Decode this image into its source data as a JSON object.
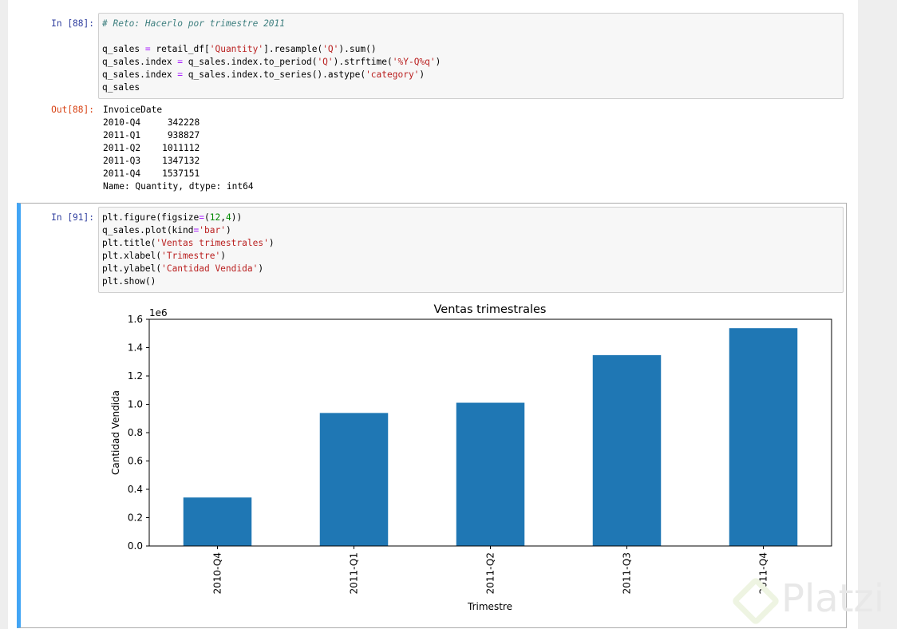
{
  "cells": [
    {
      "prompt": "In [88]:",
      "code": [
        [
          [
            "# Reto: Hacerlo por trimestre 2011",
            "cm"
          ]
        ],
        [],
        [
          [
            "q_sales ",
            ""
          ],
          [
            "=",
            "op"
          ],
          [
            " retail_df[",
            ""
          ],
          [
            "'Quantity'",
            "st"
          ],
          [
            "].resample(",
            ""
          ],
          [
            "'Q'",
            "st"
          ],
          [
            ").sum()",
            ""
          ]
        ],
        [
          [
            "q_sales.index ",
            ""
          ],
          [
            "=",
            "op"
          ],
          [
            " q_sales.index.to_period(",
            ""
          ],
          [
            "'Q'",
            "st"
          ],
          [
            ").strftime(",
            ""
          ],
          [
            "'%Y-Q%q'",
            "st"
          ],
          [
            ")",
            ""
          ]
        ],
        [
          [
            "q_sales.index ",
            ""
          ],
          [
            "=",
            "op"
          ],
          [
            " q_sales.index.to_series().astype(",
            ""
          ],
          [
            "'category'",
            "st"
          ],
          [
            ")",
            ""
          ]
        ],
        [
          [
            "q_sales",
            ""
          ]
        ]
      ],
      "out_prompt": "Out[88]:",
      "output": "InvoiceDate\n2010-Q4     342228\n2011-Q1     938827\n2011-Q2    1011112\n2011-Q3    1347132\n2011-Q4    1537151\nName: Quantity, dtype: int64"
    },
    {
      "prompt": "In [91]:",
      "code": [
        [
          [
            "plt.figure(figsize",
            ""
          ],
          [
            "=",
            "op"
          ],
          [
            "(",
            ""
          ],
          [
            "12",
            "nu"
          ],
          [
            ",",
            ""
          ],
          [
            "4",
            "nu"
          ],
          [
            "))",
            ""
          ]
        ],
        [
          [
            "q_sales.plot(kind",
            ""
          ],
          [
            "=",
            "op"
          ],
          [
            "'bar'",
            "st"
          ],
          [
            ")",
            ""
          ]
        ],
        [
          [
            "plt.title(",
            ""
          ],
          [
            "'Ventas trimestrales'",
            "st"
          ],
          [
            ")",
            ""
          ]
        ],
        [
          [
            "plt.xlabel(",
            ""
          ],
          [
            "'Trimestre'",
            "st"
          ],
          [
            ")",
            ""
          ]
        ],
        [
          [
            "plt.ylabel(",
            ""
          ],
          [
            "'Cantidad Vendida'",
            "st"
          ],
          [
            ")",
            ""
          ]
        ],
        [
          [
            "plt.show()",
            ""
          ]
        ]
      ]
    }
  ],
  "watermark": "Platzi",
  "chart_data": {
    "type": "bar",
    "title": "Ventas trimestrales",
    "xlabel": "Trimestre",
    "ylabel": "Cantidad Vendida",
    "offset_label": "1e6",
    "categories": [
      "2010-Q4",
      "2011-Q1",
      "2011-Q2",
      "2011-Q3",
      "2011-Q4"
    ],
    "values": [
      342228,
      938827,
      1011112,
      1347132,
      1537151
    ],
    "ylim": [
      0,
      1600000
    ],
    "yticks": [
      "0.0",
      "0.2",
      "0.4",
      "0.6",
      "0.8",
      "1.0",
      "1.2",
      "1.4",
      "1.6"
    ],
    "color": "#1f77b4"
  }
}
